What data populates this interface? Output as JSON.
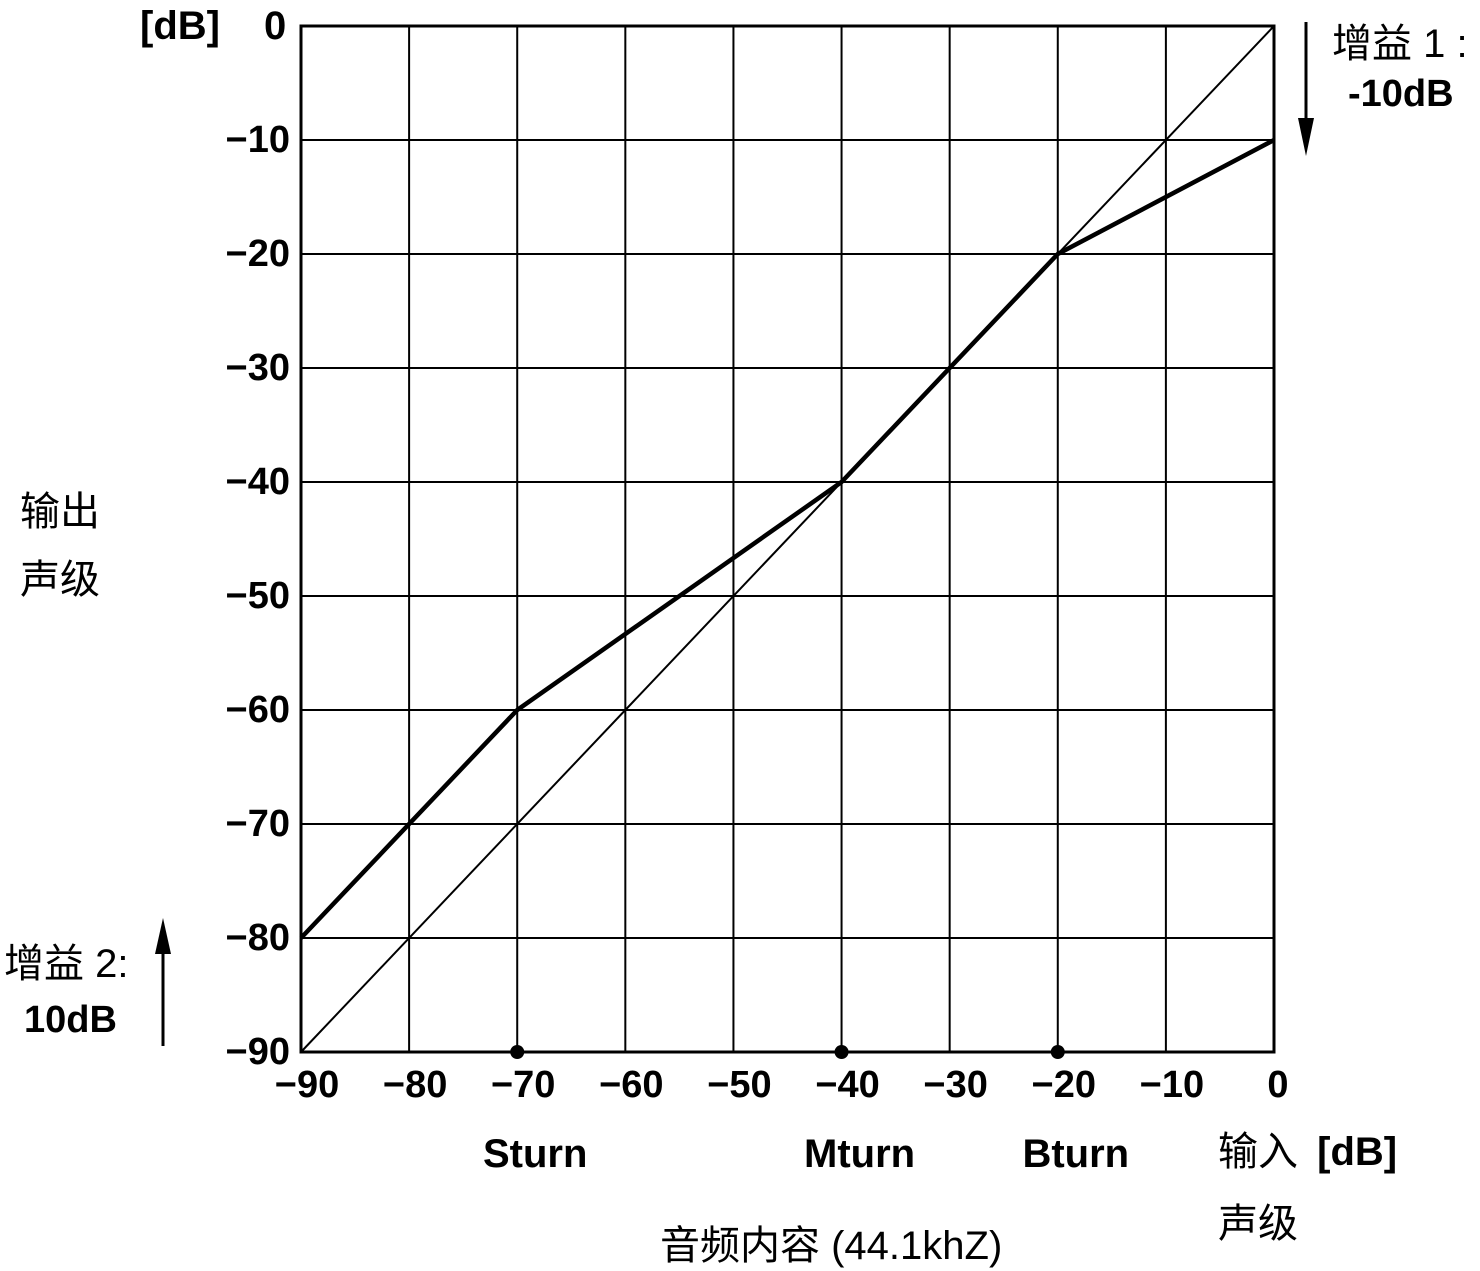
{
  "chart_data": {
    "type": "line",
    "title": "",
    "y_unit": "[dB]",
    "y_unit_tick": "0",
    "x_unit": "[dB]",
    "xlim": [
      -90,
      0
    ],
    "ylim": [
      -90,
      0
    ],
    "grid": true,
    "x_ticks": [
      "-90",
      "-80",
      "-70",
      "-60",
      "-50",
      "-40",
      "-30",
      "-20",
      "-10",
      "0"
    ],
    "y_ticks": [
      "-10",
      "-20",
      "-30",
      "-40",
      "-50",
      "-60",
      "-70",
      "-80",
      "-90"
    ],
    "series": [
      {
        "line": "thin",
        "x": [
          -90,
          0
        ],
        "y": [
          -90,
          0
        ]
      },
      {
        "line": "thick",
        "x": [
          -90,
          -70,
          -40,
          -20,
          0
        ],
        "y": [
          -80,
          -60,
          -40,
          -20,
          -10
        ]
      }
    ],
    "markers": [
      {
        "x": -70,
        "label": "Sturn"
      },
      {
        "x": -40,
        "label": "Mturn"
      },
      {
        "x": -20,
        "label": "Bturn"
      }
    ],
    "ylabel_lines": [
      "输出",
      "声级"
    ],
    "xlabel_lines": [
      "输入",
      "声级"
    ],
    "bottom_caption": "音频内容 (44.1khZ)",
    "gain1": {
      "label": "增益 1 :",
      "value": "-10dB",
      "arrow": "down"
    },
    "gain2": {
      "label": "增益 2:",
      "value": "10dB",
      "arrow": "up"
    }
  }
}
